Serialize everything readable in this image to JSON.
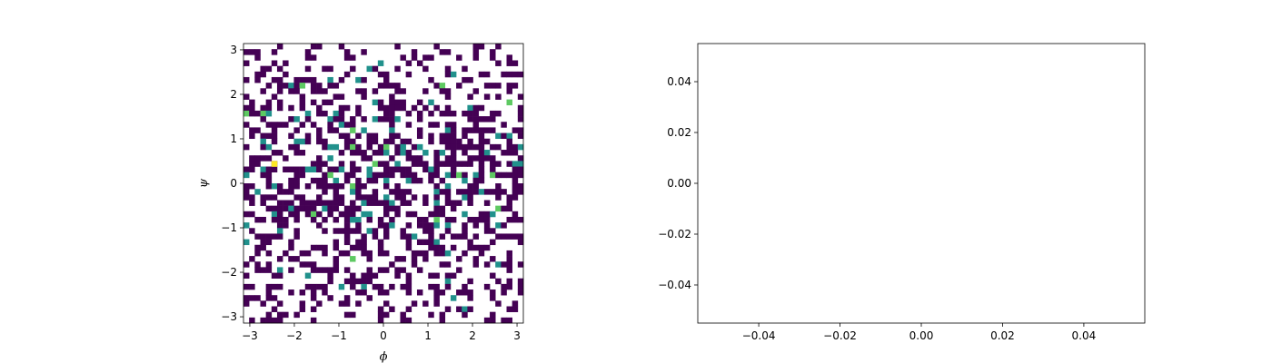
{
  "chart_data": [
    {
      "type": "heatmap",
      "title": "",
      "xlabel": "ϕ",
      "ylabel": "ψ",
      "xlim": [
        -3.14159,
        3.14159
      ],
      "ylim": [
        -3.14159,
        3.14159
      ],
      "xticks": [
        -3,
        -2,
        -1,
        0,
        1,
        2,
        3
      ],
      "yticks": [
        -3,
        -2,
        -1,
        0,
        1,
        2,
        3
      ],
      "xtick_labels": [
        "−3",
        "−2",
        "−1",
        "0",
        "1",
        "2",
        "3"
      ],
      "ytick_labels": [
        "−3",
        "−2",
        "−1",
        "0",
        "1",
        "2",
        "3"
      ],
      "bins": 50,
      "colormap": [
        "#440154",
        "#21918c",
        "#5ec962",
        "#fde725"
      ],
      "counts_range": [
        1,
        4
      ],
      "empty_bins": "white",
      "hotspot": {
        "phi": -2.5,
        "psi": 0.38,
        "count": 4
      },
      "grid": false
    },
    {
      "type": "scatter",
      "title": "",
      "xlabel": "",
      "ylabel": "",
      "xlim": [
        -0.055,
        0.055
      ],
      "ylim": [
        -0.055,
        0.055
      ],
      "xticks": [
        -0.04,
        -0.02,
        0.0,
        0.02,
        0.04
      ],
      "yticks": [
        -0.04,
        -0.02,
        0.0,
        0.02,
        0.04
      ],
      "xtick_labels": [
        "−0.04",
        "−0.02",
        "0.00",
        "0.02",
        "0.04"
      ],
      "ytick_labels": [
        "−0.04",
        "−0.02",
        "0.00",
        "0.02",
        "0.04"
      ],
      "points": [],
      "grid": false
    }
  ]
}
